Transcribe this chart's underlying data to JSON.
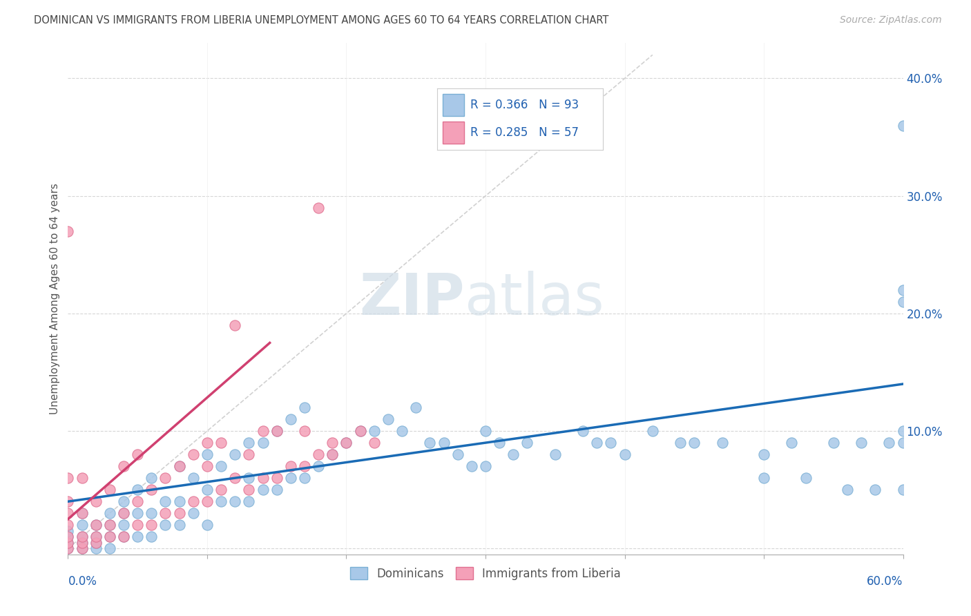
{
  "title": "DOMINICAN VS IMMIGRANTS FROM LIBERIA UNEMPLOYMENT AMONG AGES 60 TO 64 YEARS CORRELATION CHART",
  "source": "Source: ZipAtlas.com",
  "ylabel": "Unemployment Among Ages 60 to 64 years",
  "ytick_labels": [
    "",
    "10.0%",
    "20.0%",
    "30.0%",
    "40.0%"
  ],
  "ytick_values": [
    0.0,
    0.1,
    0.2,
    0.3,
    0.4
  ],
  "xlim": [
    0.0,
    0.6
  ],
  "ylim": [
    -0.005,
    0.43
  ],
  "blue_color": "#a8c8e8",
  "blue_edge": "#7aafd4",
  "pink_color": "#f4a0b8",
  "pink_edge": "#e07090",
  "blue_line_color": "#1a6bb5",
  "pink_line_color": "#d04070",
  "diag_color": "#cccccc",
  "title_color": "#444444",
  "source_color": "#aaaaaa",
  "legend_text_color": "#2060b0",
  "legend_r1": "R = 0.366",
  "legend_n1": "N = 93",
  "legend_r2": "R = 0.285",
  "legend_n2": "N = 57",
  "blue_trend_x0": 0.0,
  "blue_trend_y0": 0.04,
  "blue_trend_x1": 0.6,
  "blue_trend_y1": 0.14,
  "pink_trend_x0": 0.0,
  "pink_trend_y0": 0.025,
  "pink_trend_x1": 0.145,
  "pink_trend_y1": 0.175,
  "blue_x": [
    0.0,
    0.0,
    0.0,
    0.0,
    0.01,
    0.01,
    0.01,
    0.01,
    0.01,
    0.02,
    0.02,
    0.02,
    0.02,
    0.03,
    0.03,
    0.03,
    0.03,
    0.04,
    0.04,
    0.04,
    0.04,
    0.05,
    0.05,
    0.05,
    0.06,
    0.06,
    0.06,
    0.07,
    0.07,
    0.08,
    0.08,
    0.08,
    0.09,
    0.09,
    0.1,
    0.1,
    0.1,
    0.11,
    0.11,
    0.12,
    0.12,
    0.13,
    0.13,
    0.13,
    0.14,
    0.14,
    0.15,
    0.15,
    0.16,
    0.16,
    0.17,
    0.17,
    0.18,
    0.19,
    0.2,
    0.21,
    0.22,
    0.23,
    0.24,
    0.25,
    0.26,
    0.27,
    0.28,
    0.29,
    0.3,
    0.3,
    0.31,
    0.32,
    0.33,
    0.35,
    0.37,
    0.38,
    0.39,
    0.4,
    0.42,
    0.44,
    0.45,
    0.47,
    0.5,
    0.5,
    0.52,
    0.53,
    0.55,
    0.56,
    0.57,
    0.58,
    0.59,
    0.6,
    0.6,
    0.6,
    0.6,
    0.6,
    0.6
  ],
  "blue_y": [
    0.0,
    0.005,
    0.01,
    0.015,
    0.0,
    0.005,
    0.01,
    0.02,
    0.03,
    0.0,
    0.005,
    0.01,
    0.02,
    0.0,
    0.01,
    0.02,
    0.03,
    0.01,
    0.02,
    0.03,
    0.04,
    0.01,
    0.03,
    0.05,
    0.01,
    0.03,
    0.06,
    0.02,
    0.04,
    0.02,
    0.04,
    0.07,
    0.03,
    0.06,
    0.02,
    0.05,
    0.08,
    0.04,
    0.07,
    0.04,
    0.08,
    0.04,
    0.06,
    0.09,
    0.05,
    0.09,
    0.05,
    0.1,
    0.06,
    0.11,
    0.06,
    0.12,
    0.07,
    0.08,
    0.09,
    0.1,
    0.1,
    0.11,
    0.1,
    0.12,
    0.09,
    0.09,
    0.08,
    0.07,
    0.1,
    0.07,
    0.09,
    0.08,
    0.09,
    0.08,
    0.1,
    0.09,
    0.09,
    0.08,
    0.1,
    0.09,
    0.09,
    0.09,
    0.08,
    0.06,
    0.09,
    0.06,
    0.09,
    0.05,
    0.09,
    0.05,
    0.09,
    0.05,
    0.09,
    0.1,
    0.22,
    0.21,
    0.36
  ],
  "pink_x": [
    0.0,
    0.0,
    0.0,
    0.0,
    0.0,
    0.0,
    0.0,
    0.0,
    0.01,
    0.01,
    0.01,
    0.01,
    0.01,
    0.02,
    0.02,
    0.02,
    0.02,
    0.03,
    0.03,
    0.03,
    0.04,
    0.04,
    0.04,
    0.05,
    0.05,
    0.05,
    0.06,
    0.06,
    0.07,
    0.07,
    0.08,
    0.08,
    0.09,
    0.09,
    0.1,
    0.1,
    0.1,
    0.11,
    0.11,
    0.12,
    0.12,
    0.13,
    0.13,
    0.14,
    0.14,
    0.15,
    0.15,
    0.16,
    0.17,
    0.17,
    0.18,
    0.18,
    0.19,
    0.19,
    0.2,
    0.21,
    0.22
  ],
  "pink_y": [
    0.0,
    0.005,
    0.01,
    0.02,
    0.03,
    0.04,
    0.06,
    0.27,
    0.0,
    0.005,
    0.01,
    0.03,
    0.06,
    0.005,
    0.01,
    0.02,
    0.04,
    0.01,
    0.02,
    0.05,
    0.01,
    0.03,
    0.07,
    0.02,
    0.04,
    0.08,
    0.02,
    0.05,
    0.03,
    0.06,
    0.03,
    0.07,
    0.04,
    0.08,
    0.04,
    0.07,
    0.09,
    0.05,
    0.09,
    0.06,
    0.19,
    0.05,
    0.08,
    0.06,
    0.1,
    0.06,
    0.1,
    0.07,
    0.07,
    0.1,
    0.08,
    0.29,
    0.08,
    0.09,
    0.09,
    0.1,
    0.09
  ]
}
